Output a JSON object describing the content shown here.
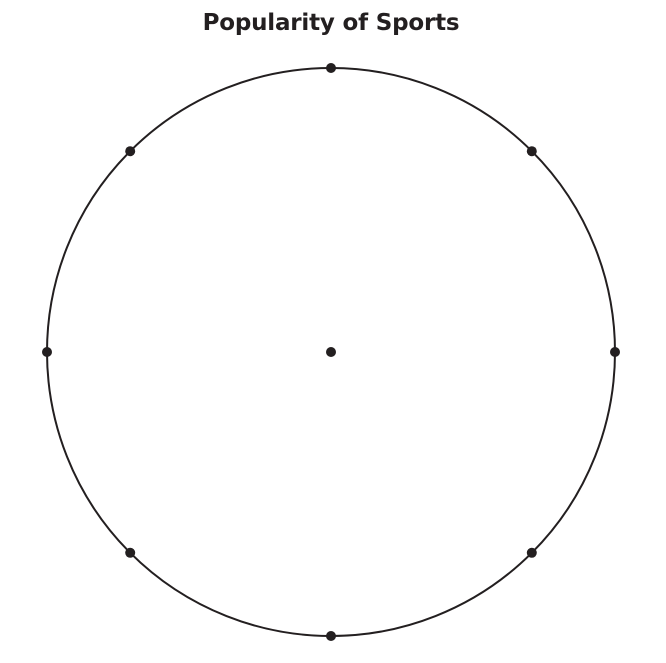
{
  "chart_data": {
    "type": "pie",
    "title": "Popularity of Sports",
    "categories": [],
    "values": [],
    "segments": 8,
    "center_marker": true,
    "boundary_markers": 8,
    "legend": "none",
    "xlabel": "",
    "ylabel": ""
  },
  "colors": {
    "ink": "#231f20",
    "background": "#ffffff"
  }
}
